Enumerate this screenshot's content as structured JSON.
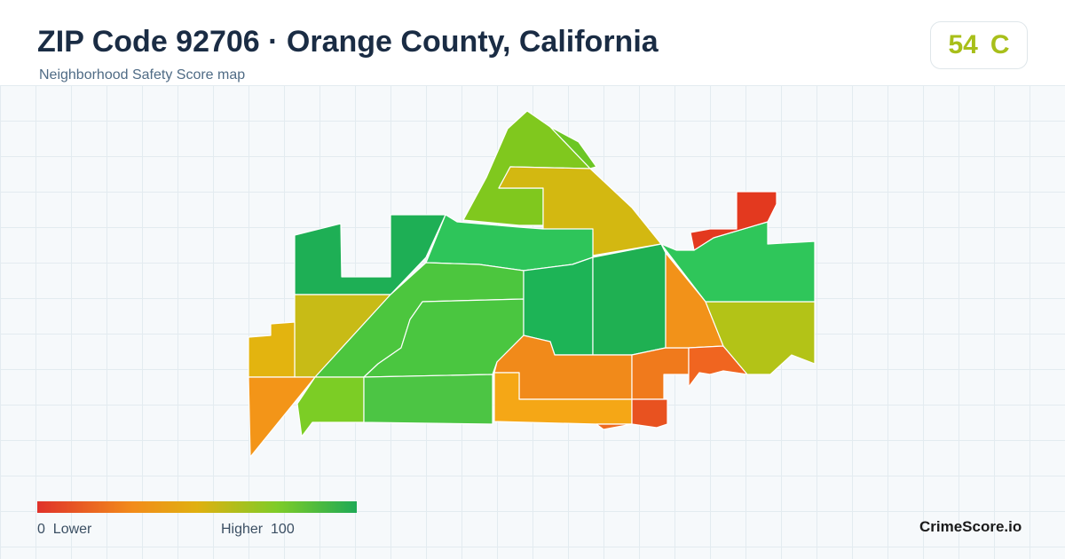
{
  "header": {
    "title": "ZIP Code 92706 · Orange County, California",
    "subtitle": "Neighborhood Safety Score map"
  },
  "score": {
    "value": "54",
    "grade": "C",
    "color": "#a8bf1a"
  },
  "legend": {
    "low_value": "0",
    "low_label": "Lower",
    "high_label": "Higher",
    "high_value": "100",
    "colors": [
      "#e0322a",
      "#f28c1a",
      "#e0b010",
      "#7fcc28",
      "#1faa55"
    ]
  },
  "brand": "CrimeScore.io"
}
